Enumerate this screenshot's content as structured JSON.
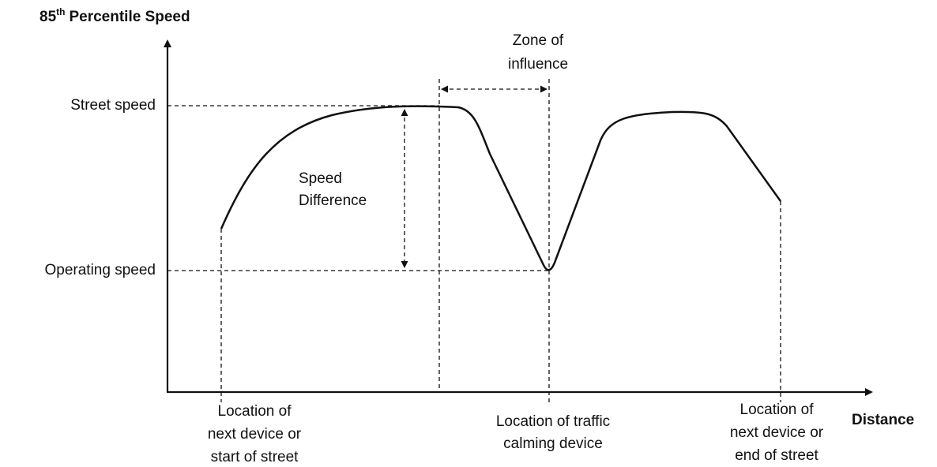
{
  "diagram": {
    "y_axis_label": {
      "number": "85",
      "superscript": "th",
      "rest": "Percentile Speed"
    },
    "x_axis_label": "Distance",
    "street_speed": "Street speed",
    "operating_speed": "Operating speed",
    "speed_difference": [
      "Speed",
      "Difference"
    ],
    "zone_of_influence": [
      "Zone of",
      "influence"
    ],
    "location_start": [
      "Location of",
      "next device or",
      "start of street"
    ],
    "location_device": [
      "Location of traffic",
      "calming device"
    ],
    "location_end": [
      "Location of",
      "next device or",
      "end of street"
    ]
  }
}
